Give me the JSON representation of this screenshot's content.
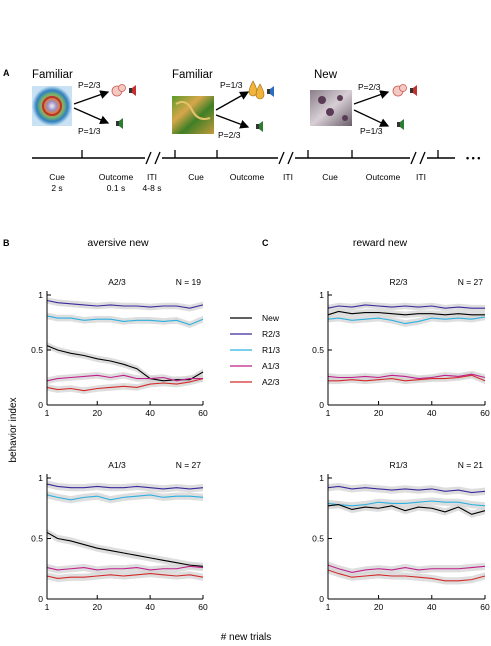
{
  "panel_a": {
    "letter": "A",
    "conditions": [
      {
        "title": "Familiar",
        "upper_prob": "P=2/3",
        "lower_prob": "P=1/3",
        "image": "fractal-image-1",
        "upper_outcome": "air-puff-icon",
        "lower_outcome": "speaker-icon"
      },
      {
        "title": "Familiar",
        "upper_prob": "P=1/3",
        "lower_prob": "P=2/3",
        "image": "fractal-image-2",
        "upper_outcome": "juice-drop-icon",
        "lower_outcome": "speaker-icon"
      },
      {
        "title": "New",
        "upper_prob": "P=2/3",
        "lower_prob": "P=1/3",
        "image": "fractal-image-3",
        "upper_outcome": "air-puff-icon",
        "lower_outcome": "speaker-icon"
      }
    ],
    "timeline": {
      "labels": [
        {
          "text": "Cue",
          "sub": "2 s"
        },
        {
          "text": "Outcome",
          "sub": "0.1 s"
        },
        {
          "text": "ITI",
          "sub": "4-8 s"
        },
        {
          "text": "Cue",
          "sub": ""
        },
        {
          "text": "Outcome",
          "sub": ""
        },
        {
          "text": "ITI",
          "sub": ""
        },
        {
          "text": "Cue",
          "sub": ""
        },
        {
          "text": "Outcome",
          "sub": ""
        },
        {
          "text": "ITI",
          "sub": ""
        }
      ],
      "ellipsis": "• • •"
    }
  },
  "panel_b": {
    "letter": "B",
    "title": "aversive new"
  },
  "panel_c": {
    "letter": "C",
    "title": "reward new"
  },
  "ylabel": "behavior index",
  "xlabel": "# new trials",
  "legend": {
    "entries": [
      {
        "label": "New",
        "color": "#000000"
      },
      {
        "label": "R2/3",
        "color": "#3a2a9c"
      },
      {
        "label": "R1/3",
        "color": "#2cb0e0"
      },
      {
        "label": "A1/3",
        "color": "#c0208a"
      },
      {
        "label": "A2/3",
        "color": "#d42a2a"
      }
    ]
  },
  "colors": {
    "New": "#000000",
    "R2/3": "#3a2a9c",
    "R1/3": "#2cb0e0",
    "A1/3": "#c0208a",
    "A2/3": "#d42a2a",
    "band": "#d3d3d3"
  },
  "chart_data": [
    {
      "type": "line",
      "panel": "B-top",
      "title": "A2/3",
      "n_label": "N = 19",
      "xlim": [
        1,
        60
      ],
      "ylim": [
        0,
        1
      ],
      "xticks": [
        "1",
        "20",
        "40",
        "60"
      ],
      "yticks": [
        "0",
        "0.5",
        "1"
      ],
      "xticks_num": [
        1,
        20,
        40,
        60
      ],
      "yticks_num": [
        0,
        0.5,
        1
      ],
      "x": [
        1,
        5,
        10,
        15,
        20,
        25,
        30,
        35,
        40,
        45,
        50,
        55,
        60
      ],
      "series": [
        {
          "name": "R2/3",
          "values": [
            0.95,
            0.93,
            0.92,
            0.91,
            0.9,
            0.91,
            0.9,
            0.9,
            0.89,
            0.9,
            0.9,
            0.88,
            0.91
          ]
        },
        {
          "name": "R1/3",
          "values": [
            0.81,
            0.79,
            0.79,
            0.77,
            0.78,
            0.78,
            0.76,
            0.77,
            0.77,
            0.76,
            0.77,
            0.73,
            0.78
          ]
        },
        {
          "name": "New",
          "values": [
            0.54,
            0.5,
            0.47,
            0.45,
            0.42,
            0.4,
            0.37,
            0.33,
            0.24,
            0.22,
            0.23,
            0.23,
            0.3
          ]
        },
        {
          "name": "A1/3",
          "values": [
            0.22,
            0.24,
            0.25,
            0.26,
            0.27,
            0.25,
            0.27,
            0.24,
            0.24,
            0.25,
            0.22,
            0.24,
            0.24
          ]
        },
        {
          "name": "A2/3",
          "values": [
            0.16,
            0.14,
            0.15,
            0.13,
            0.15,
            0.16,
            0.17,
            0.16,
            0.19,
            0.2,
            0.19,
            0.21,
            0.24
          ]
        }
      ]
    },
    {
      "type": "line",
      "panel": "B-bottom",
      "title": "A1/3",
      "n_label": "N = 27",
      "xlim": [
        1,
        60
      ],
      "ylim": [
        0,
        1
      ],
      "xticks": [
        "1",
        "20",
        "40",
        "60"
      ],
      "yticks": [
        "0",
        "0.5",
        "1"
      ],
      "xticks_num": [
        1,
        20,
        40,
        60
      ],
      "yticks_num": [
        0,
        0.5,
        1
      ],
      "x": [
        1,
        5,
        10,
        15,
        20,
        25,
        30,
        35,
        40,
        45,
        50,
        55,
        60
      ],
      "series": [
        {
          "name": "R2/3",
          "values": [
            0.95,
            0.93,
            0.92,
            0.92,
            0.93,
            0.92,
            0.92,
            0.93,
            0.92,
            0.91,
            0.92,
            0.91,
            0.92
          ]
        },
        {
          "name": "R1/3",
          "values": [
            0.86,
            0.84,
            0.82,
            0.84,
            0.85,
            0.82,
            0.84,
            0.85,
            0.86,
            0.84,
            0.85,
            0.85,
            0.84
          ]
        },
        {
          "name": "New",
          "values": [
            0.55,
            0.5,
            0.48,
            0.45,
            0.42,
            0.4,
            0.38,
            0.36,
            0.34,
            0.32,
            0.3,
            0.28,
            0.27
          ]
        },
        {
          "name": "A1/3",
          "values": [
            0.26,
            0.24,
            0.25,
            0.26,
            0.24,
            0.25,
            0.25,
            0.26,
            0.24,
            0.25,
            0.25,
            0.27,
            0.26
          ]
        },
        {
          "name": "A2/3",
          "values": [
            0.19,
            0.17,
            0.18,
            0.18,
            0.19,
            0.2,
            0.19,
            0.2,
            0.21,
            0.2,
            0.19,
            0.2,
            0.18
          ]
        }
      ]
    },
    {
      "type": "line",
      "panel": "C-top",
      "title": "R2/3",
      "n_label": "N = 27",
      "xlim": [
        1,
        60
      ],
      "ylim": [
        0,
        1
      ],
      "xticks": [
        "1",
        "20",
        "40",
        "60"
      ],
      "yticks": [
        "0",
        "0.5",
        "1"
      ],
      "xticks_num": [
        1,
        20,
        40,
        60
      ],
      "yticks_num": [
        0,
        0.5,
        1
      ],
      "x": [
        1,
        5,
        10,
        15,
        20,
        25,
        30,
        35,
        40,
        45,
        50,
        55,
        60
      ],
      "series": [
        {
          "name": "R2/3",
          "values": [
            0.88,
            0.9,
            0.89,
            0.91,
            0.9,
            0.89,
            0.9,
            0.89,
            0.9,
            0.88,
            0.89,
            0.88,
            0.88
          ]
        },
        {
          "name": "New",
          "values": [
            0.82,
            0.85,
            0.83,
            0.84,
            0.84,
            0.83,
            0.82,
            0.83,
            0.83,
            0.82,
            0.83,
            0.82,
            0.82
          ]
        },
        {
          "name": "R1/3",
          "values": [
            0.78,
            0.79,
            0.77,
            0.78,
            0.79,
            0.77,
            0.74,
            0.76,
            0.79,
            0.78,
            0.79,
            0.78,
            0.8
          ]
        },
        {
          "name": "A1/3",
          "values": [
            0.26,
            0.25,
            0.25,
            0.26,
            0.25,
            0.27,
            0.26,
            0.24,
            0.25,
            0.27,
            0.26,
            0.28,
            0.25
          ]
        },
        {
          "name": "A2/3",
          "values": [
            0.22,
            0.22,
            0.23,
            0.22,
            0.23,
            0.24,
            0.22,
            0.23,
            0.24,
            0.24,
            0.25,
            0.27,
            0.22
          ]
        }
      ]
    },
    {
      "type": "line",
      "panel": "C-bottom",
      "title": "R1/3",
      "n_label": "N = 21",
      "xlim": [
        1,
        60
      ],
      "ylim": [
        0,
        1
      ],
      "xticks": [
        "1",
        "20",
        "40",
        "60"
      ],
      "yticks": [
        "0",
        "0.5",
        "1"
      ],
      "xticks_num": [
        1,
        20,
        40,
        60
      ],
      "yticks_num": [
        0,
        0.5,
        1
      ],
      "x": [
        1,
        5,
        10,
        15,
        20,
        25,
        30,
        35,
        40,
        45,
        50,
        55,
        60
      ],
      "series": [
        {
          "name": "R2/3",
          "values": [
            0.92,
            0.93,
            0.91,
            0.92,
            0.91,
            0.9,
            0.91,
            0.9,
            0.91,
            0.89,
            0.9,
            0.88,
            0.89
          ]
        },
        {
          "name": "R1/3",
          "values": [
            0.79,
            0.78,
            0.77,
            0.78,
            0.8,
            0.79,
            0.79,
            0.8,
            0.81,
            0.8,
            0.8,
            0.78,
            0.77
          ]
        },
        {
          "name": "New",
          "values": [
            0.77,
            0.78,
            0.74,
            0.76,
            0.75,
            0.77,
            0.73,
            0.76,
            0.75,
            0.72,
            0.76,
            0.7,
            0.73
          ]
        },
        {
          "name": "A1/3",
          "values": [
            0.28,
            0.25,
            0.22,
            0.24,
            0.25,
            0.24,
            0.26,
            0.24,
            0.25,
            0.25,
            0.25,
            0.26,
            0.27
          ]
        },
        {
          "name": "A2/3",
          "values": [
            0.24,
            0.21,
            0.18,
            0.19,
            0.2,
            0.19,
            0.19,
            0.18,
            0.17,
            0.15,
            0.15,
            0.16,
            0.19
          ]
        }
      ]
    }
  ]
}
